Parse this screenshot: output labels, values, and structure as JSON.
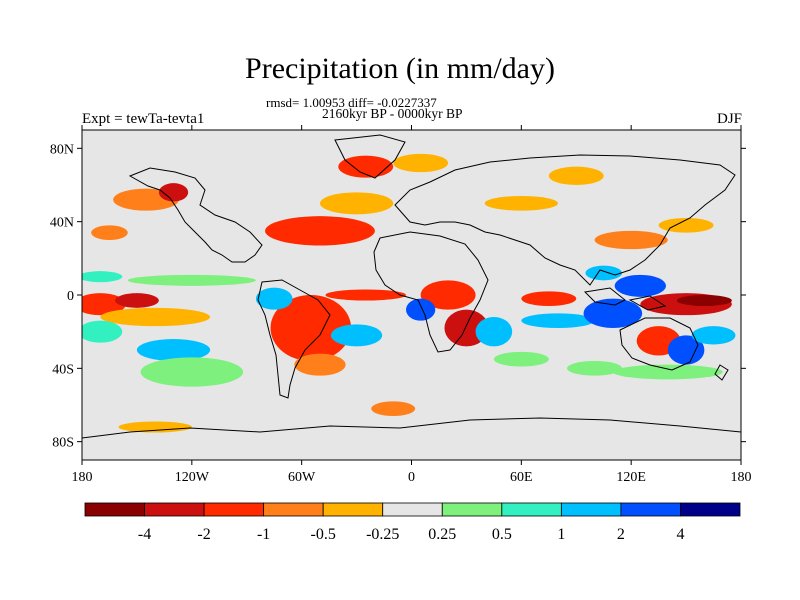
{
  "title": "Precipitation (in mm/day)",
  "stats_line": "rmsd= 1.00953 diff= -0.0227337",
  "period": "2160kyr BP - 0000kyr BP",
  "experiment": "Expt = tewTa-tevta1",
  "season": "DJF",
  "map": {
    "lon_range": [
      -180,
      180
    ],
    "lat_range": [
      -90,
      90
    ],
    "x_ticks": [
      {
        "value": -180,
        "label": "180"
      },
      {
        "value": -120,
        "label": "120W"
      },
      {
        "value": -60,
        "label": "60W"
      },
      {
        "value": 0,
        "label": "0"
      },
      {
        "value": 60,
        "label": "60E"
      },
      {
        "value": 120,
        "label": "120E"
      },
      {
        "value": 180,
        "label": "180"
      }
    ],
    "y_ticks": [
      {
        "value": 80,
        "label": "80N"
      },
      {
        "value": 40,
        "label": "40N"
      },
      {
        "value": 0,
        "label": "0"
      },
      {
        "value": -40,
        "label": "40S"
      },
      {
        "value": -80,
        "label": "80S"
      }
    ],
    "background_color": "#e6e6e6"
  },
  "colorbar": {
    "colors": [
      "#8b0000",
      "#cc1010",
      "#ff2a00",
      "#ff7f1a",
      "#ffb300",
      "#e6e6e6",
      "#7df07d",
      "#33f0c0",
      "#00bfff",
      "#0050ff",
      "#00008b"
    ],
    "labels": [
      "-4",
      "-2",
      "-1",
      "-0.5",
      "-0.25",
      "0.25",
      "0.5",
      "1",
      "2",
      "4"
    ]
  },
  "regions": [
    {
      "lon": -170,
      "lat": -5,
      "rx": 14,
      "ry": 6,
      "color": "#ff2a00"
    },
    {
      "lon": -150,
      "lat": -3,
      "rx": 12,
      "ry": 4,
      "color": "#cc1010"
    },
    {
      "lon": -170,
      "lat": 10,
      "rx": 12,
      "ry": 3,
      "color": "#33f0c0"
    },
    {
      "lon": -120,
      "lat": 8,
      "rx": 35,
      "ry": 3,
      "color": "#7df07d"
    },
    {
      "lon": -140,
      "lat": -12,
      "rx": 30,
      "ry": 5,
      "color": "#ffb300"
    },
    {
      "lon": -130,
      "lat": -30,
      "rx": 20,
      "ry": 6,
      "color": "#00bfff"
    },
    {
      "lon": -120,
      "lat": -42,
      "rx": 28,
      "ry": 8,
      "color": "#7df07d"
    },
    {
      "lon": -170,
      "lat": -20,
      "rx": 12,
      "ry": 6,
      "color": "#33f0c0"
    },
    {
      "lon": -145,
      "lat": 52,
      "rx": 18,
      "ry": 6,
      "color": "#ff7f1a"
    },
    {
      "lon": -130,
      "lat": 56,
      "rx": 8,
      "ry": 5,
      "color": "#cc1010"
    },
    {
      "lon": -165,
      "lat": 34,
      "rx": 10,
      "ry": 4,
      "color": "#ff7f1a"
    },
    {
      "lon": -55,
      "lat": -18,
      "rx": 22,
      "ry": 18,
      "color": "#ff2a00"
    },
    {
      "lon": -75,
      "lat": -2,
      "rx": 10,
      "ry": 6,
      "color": "#00bfff"
    },
    {
      "lon": -50,
      "lat": -38,
      "rx": 14,
      "ry": 6,
      "color": "#ff7f1a"
    },
    {
      "lon": -30,
      "lat": -22,
      "rx": 14,
      "ry": 6,
      "color": "#00bfff"
    },
    {
      "lon": -25,
      "lat": 0,
      "rx": 22,
      "ry": 3,
      "color": "#ff2a00"
    },
    {
      "lon": -50,
      "lat": 35,
      "rx": 30,
      "ry": 8,
      "color": "#ff2a00"
    },
    {
      "lon": -30,
      "lat": 50,
      "rx": 20,
      "ry": 6,
      "color": "#ffb300"
    },
    {
      "lon": -25,
      "lat": 70,
      "rx": 15,
      "ry": 6,
      "color": "#ff2a00"
    },
    {
      "lon": 5,
      "lat": 72,
      "rx": 15,
      "ry": 5,
      "color": "#ffb300"
    },
    {
      "lon": 20,
      "lat": 0,
      "rx": 15,
      "ry": 8,
      "color": "#ff2a00"
    },
    {
      "lon": 30,
      "lat": -18,
      "rx": 12,
      "ry": 10,
      "color": "#cc1010"
    },
    {
      "lon": 45,
      "lat": -20,
      "rx": 10,
      "ry": 8,
      "color": "#00bfff"
    },
    {
      "lon": 5,
      "lat": -8,
      "rx": 8,
      "ry": 6,
      "color": "#0050ff"
    },
    {
      "lon": 75,
      "lat": -2,
      "rx": 15,
      "ry": 4,
      "color": "#ff2a00"
    },
    {
      "lon": 80,
      "lat": -14,
      "rx": 20,
      "ry": 4,
      "color": "#00bfff"
    },
    {
      "lon": 110,
      "lat": -10,
      "rx": 16,
      "ry": 8,
      "color": "#0050ff"
    },
    {
      "lon": 125,
      "lat": 5,
      "rx": 14,
      "ry": 6,
      "color": "#0050ff"
    },
    {
      "lon": 105,
      "lat": 12,
      "rx": 10,
      "ry": 4,
      "color": "#00bfff"
    },
    {
      "lon": 150,
      "lat": -5,
      "rx": 25,
      "ry": 6,
      "color": "#cc1010"
    },
    {
      "lon": 160,
      "lat": -3,
      "rx": 15,
      "ry": 3,
      "color": "#8b0000"
    },
    {
      "lon": 135,
      "lat": -25,
      "rx": 12,
      "ry": 8,
      "color": "#ff2a00"
    },
    {
      "lon": 150,
      "lat": -30,
      "rx": 10,
      "ry": 8,
      "color": "#0050ff"
    },
    {
      "lon": 165,
      "lat": -22,
      "rx": 12,
      "ry": 5,
      "color": "#00bfff"
    },
    {
      "lon": 120,
      "lat": 30,
      "rx": 20,
      "ry": 5,
      "color": "#ff7f1a"
    },
    {
      "lon": 150,
      "lat": 38,
      "rx": 15,
      "ry": 4,
      "color": "#ffb300"
    },
    {
      "lon": 140,
      "lat": -42,
      "rx": 30,
      "ry": 4,
      "color": "#7df07d"
    },
    {
      "lon": 100,
      "lat": -40,
      "rx": 15,
      "ry": 4,
      "color": "#7df07d"
    },
    {
      "lon": 60,
      "lat": -35,
      "rx": 15,
      "ry": 4,
      "color": "#7df07d"
    },
    {
      "lon": -10,
      "lat": -62,
      "rx": 12,
      "ry": 4,
      "color": "#ff7f1a"
    },
    {
      "lon": -140,
      "lat": -72,
      "rx": 20,
      "ry": 3,
      "color": "#ffb300"
    },
    {
      "lon": 60,
      "lat": 50,
      "rx": 20,
      "ry": 4,
      "color": "#ffb300"
    },
    {
      "lon": 90,
      "lat": 65,
      "rx": 15,
      "ry": 5,
      "color": "#ffb300"
    }
  ]
}
